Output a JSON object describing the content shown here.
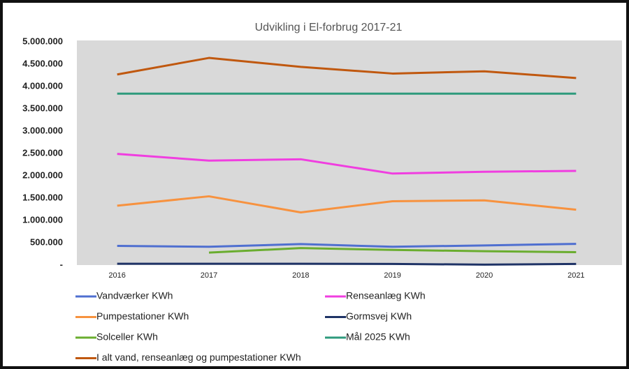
{
  "chart_data": {
    "type": "line",
    "title": "Udvikling i El-forbrug 2017-21",
    "categories": [
      "2016",
      "2017",
      "2018",
      "2019",
      "2020",
      "2021"
    ],
    "series": [
      {
        "name": "Vandværker KWh",
        "color": "#4f6fd0",
        "values": [
          430000,
          410000,
          470000,
          410000,
          440000,
          475000
        ]
      },
      {
        "name": "Renseanlæg KWh",
        "color": "#f03ee0",
        "values": [
          2490000,
          2340000,
          2370000,
          2050000,
          2090000,
          2110000
        ]
      },
      {
        "name": "Pumpestationer KWh",
        "color": "#f7923f",
        "values": [
          1330000,
          1540000,
          1180000,
          1430000,
          1450000,
          1240000
        ]
      },
      {
        "name": "Gormsvej KWh",
        "color": "#1f3366",
        "values": [
          30000,
          30000,
          30000,
          25000,
          10000,
          25000
        ]
      },
      {
        "name": "Solceller  KWh",
        "color": "#6aad2f",
        "values": [
          null,
          280000,
          380000,
          340000,
          310000,
          290000
        ]
      },
      {
        "name": "Mål 2025 KWh",
        "color": "#2e9a7c",
        "values": [
          3840000,
          3840000,
          3840000,
          3840000,
          3840000,
          3840000
        ]
      },
      {
        "name": "I alt  vand, renseanlæg og pumpestationer KWh",
        "color": "#c0580f",
        "values": [
          4270000,
          4640000,
          4440000,
          4290000,
          4340000,
          4190000
        ]
      }
    ],
    "ylim": [
      0,
      5000000
    ],
    "yticks": [
      {
        "value": 0,
        "label": "-"
      },
      {
        "value": 500000,
        "label": "500.000"
      },
      {
        "value": 1000000,
        "label": "1.000.000"
      },
      {
        "value": 1500000,
        "label": "1.500.000"
      },
      {
        "value": 2000000,
        "label": "2.000.000"
      },
      {
        "value": 2500000,
        "label": "2.500.000"
      },
      {
        "value": 3000000,
        "label": "3.000.000"
      },
      {
        "value": 3500000,
        "label": "3.500.000"
      },
      {
        "value": 4000000,
        "label": "4.000.000"
      },
      {
        "value": 4500000,
        "label": "4.500.000"
      },
      {
        "value": 5000000,
        "label": "5.000.000"
      }
    ],
    "plot_background": "#d9d9d9"
  }
}
